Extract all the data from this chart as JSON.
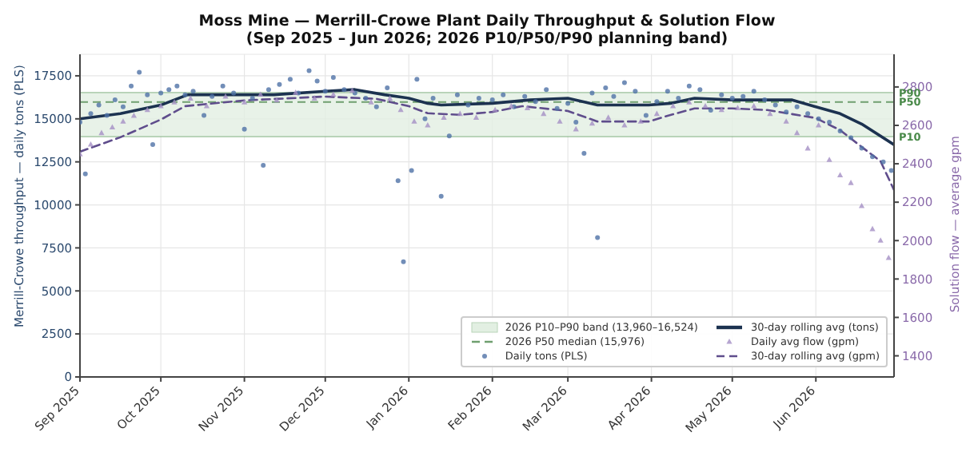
{
  "chart_data": {
    "type": "scatter",
    "title": "Moss Mine — Merrill-Crowe Plant Daily Throughput & Solution Flow",
    "subtitle": "(Sep 2025 – Jun 2026; 2026 P10/P50/P90 planning band)",
    "ylabel": "Merrill-Crowe throughput — daily tons (PLS)",
    "y2label": "Solution flow — average gpm",
    "xlim": [
      "2025-09-01",
      "2026-06-30"
    ],
    "xticks": [
      {
        "value": "2025-09-01",
        "label": "Sep 2025"
      },
      {
        "value": "2025-10-01",
        "label": "Oct 2025"
      },
      {
        "value": "2025-11-01",
        "label": "Nov 2025"
      },
      {
        "value": "2025-12-01",
        "label": "Dec 2025"
      },
      {
        "value": "2026-01-01",
        "label": "Jan 2026"
      },
      {
        "value": "2026-02-01",
        "label": "Feb 2026"
      },
      {
        "value": "2026-03-01",
        "label": "Mar 2026"
      },
      {
        "value": "2026-04-01",
        "label": "Apr 2026"
      },
      {
        "value": "2026-05-01",
        "label": "May 2026"
      },
      {
        "value": "2026-06-01",
        "label": "Jun 2026"
      }
    ],
    "ylim": [
      0,
      18750
    ],
    "yticks": [
      0,
      2500,
      5000,
      7500,
      10000,
      12500,
      15000,
      17500
    ],
    "y2lim": [
      1290,
      2970
    ],
    "y2ticks": [
      1400,
      1600,
      1800,
      2000,
      2200,
      2400,
      2600,
      2800
    ],
    "grid": true,
    "legend": "bottom right",
    "bands": [
      {
        "axis": "y",
        "from": 13960,
        "to": 16524,
        "label": "2026 P10–P90 band (13,960–16,524)",
        "color": "#e2efe2"
      }
    ],
    "ref_lines": [
      {
        "axis": "y",
        "value": 15976,
        "label": "2026 P50 median (15,976)",
        "color": "#6f9f6f",
        "line_style": "dashed"
      }
    ],
    "annotations": [
      {
        "text": "P90",
        "x": "2026-06-30",
        "y": 16524
      },
      {
        "text": "P50",
        "x": "2026-06-30",
        "y": 15976
      },
      {
        "text": "P10",
        "x": "2026-06-30",
        "y": 13960
      }
    ],
    "series": [
      {
        "name": "Daily tons (PLS)",
        "marker": "circle",
        "color": "#4f72a6",
        "x": [
          "2025-09-01",
          "2025-09-03",
          "2025-09-05",
          "2025-09-08",
          "2025-09-11",
          "2025-09-14",
          "2025-09-17",
          "2025-09-20",
          "2025-09-23",
          "2025-09-26",
          "2025-09-28",
          "2025-10-01",
          "2025-10-04",
          "2025-10-07",
          "2025-10-10",
          "2025-10-13",
          "2025-10-17",
          "2025-10-20",
          "2025-10-24",
          "2025-10-28",
          "2025-11-01",
          "2025-11-04",
          "2025-11-08",
          "2025-11-10",
          "2025-11-14",
          "2025-11-18",
          "2025-11-21",
          "2025-11-25",
          "2025-11-28",
          "2025-12-01",
          "2025-12-04",
          "2025-12-08",
          "2025-12-12",
          "2025-12-16",
          "2025-12-20",
          "2025-12-24",
          "2025-12-28",
          "2025-12-30",
          "2026-01-02",
          "2026-01-04",
          "2026-01-07",
          "2026-01-10",
          "2026-01-13",
          "2026-01-16",
          "2026-01-19",
          "2026-01-23",
          "2026-01-27",
          "2026-02-01",
          "2026-02-05",
          "2026-02-09",
          "2026-02-13",
          "2026-02-17",
          "2026-02-21",
          "2026-02-25",
          "2026-03-01",
          "2026-03-04",
          "2026-03-07",
          "2026-03-10",
          "2026-03-12",
          "2026-03-15",
          "2026-03-18",
          "2026-03-22",
          "2026-03-26",
          "2026-03-30",
          "2026-04-03",
          "2026-04-07",
          "2026-04-11",
          "2026-04-15",
          "2026-04-19",
          "2026-04-23",
          "2026-04-27",
          "2026-05-01",
          "2026-05-05",
          "2026-05-09",
          "2026-05-13",
          "2026-05-17",
          "2026-05-21",
          "2026-05-25",
          "2026-05-29",
          "2026-06-02",
          "2026-06-06",
          "2026-06-10",
          "2026-06-14",
          "2026-06-18",
          "2026-06-22",
          "2026-06-26",
          "2026-06-29"
        ],
        "values": [
          14800,
          11800,
          15300,
          15800,
          15200,
          16100,
          15700,
          16900,
          17700,
          16400,
          13500,
          16500,
          16700,
          16900,
          16400,
          16600,
          15200,
          16300,
          16900,
          16500,
          14400,
          16200,
          12300,
          16700,
          17000,
          17300,
          16500,
          17800,
          17200,
          16600,
          17400,
          16700,
          16500,
          16200,
          15700,
          16800,
          11400,
          6700,
          12000,
          17300,
          15000,
          16200,
          10500,
          14000,
          16400,
          15800,
          16200,
          16100,
          16400,
          15700,
          16300,
          16000,
          16700,
          15600,
          15900,
          14800,
          13000,
          16500,
          8100,
          16800,
          16300,
          17100,
          16600,
          15200,
          16000,
          16600,
          16200,
          16900,
          16700,
          15500,
          16400,
          16200,
          16300,
          16600,
          16100,
          15800,
          15400,
          15700,
          15300,
          15000,
          14800,
          14300,
          13900,
          13300,
          12800,
          12500,
          12000
        ]
      },
      {
        "name": "30-day rolling avg (tons)",
        "type": "line",
        "marker": "none",
        "line_style": "solid",
        "color": "#1c3250",
        "x": [
          "2025-09-01",
          "2025-09-16",
          "2025-10-01",
          "2025-10-11",
          "2025-11-01",
          "2025-11-12",
          "2025-12-01",
          "2025-12-12",
          "2025-12-23",
          "2026-01-01",
          "2026-01-08",
          "2026-01-13",
          "2026-02-01",
          "2026-02-15",
          "2026-03-01",
          "2026-03-12",
          "2026-03-31",
          "2026-04-08",
          "2026-04-17",
          "2026-05-01",
          "2026-05-23",
          "2026-06-01",
          "2026-06-10",
          "2026-06-18",
          "2026-06-30"
        ],
        "values": [
          15000,
          15300,
          15800,
          16400,
          16400,
          16400,
          16600,
          16700,
          16400,
          16200,
          15900,
          15800,
          15900,
          16100,
          16200,
          15800,
          15800,
          15900,
          16200,
          16100,
          16100,
          15700,
          15300,
          14700,
          13500
        ]
      },
      {
        "name": "Daily avg flow (gpm)",
        "type": "scatter",
        "marker": "triangle",
        "axis": "y2",
        "color": "#a48fc4",
        "x": [
          "2025-09-01",
          "2025-09-05",
          "2025-09-09",
          "2025-09-13",
          "2025-09-17",
          "2025-09-21",
          "2025-09-26",
          "2025-10-01",
          "2025-10-06",
          "2025-10-12",
          "2025-10-18",
          "2025-10-25",
          "2025-11-01",
          "2025-11-07",
          "2025-11-13",
          "2025-11-20",
          "2025-11-27",
          "2025-12-04",
          "2025-12-11",
          "2025-12-18",
          "2025-12-25",
          "2025-12-29",
          "2026-01-03",
          "2026-01-08",
          "2026-01-14",
          "2026-01-20",
          "2026-01-26",
          "2026-02-02",
          "2026-02-08",
          "2026-02-14",
          "2026-02-20",
          "2026-02-26",
          "2026-03-04",
          "2026-03-10",
          "2026-03-16",
          "2026-03-22",
          "2026-03-28",
          "2026-04-03",
          "2026-04-09",
          "2026-04-15",
          "2026-04-21",
          "2026-04-27",
          "2026-05-03",
          "2026-05-09",
          "2026-05-15",
          "2026-05-21",
          "2026-05-25",
          "2026-05-29",
          "2026-06-02",
          "2026-06-06",
          "2026-06-10",
          "2026-06-14",
          "2026-06-18",
          "2026-06-22",
          "2026-06-25",
          "2026-06-28"
        ],
        "values": [
          2450,
          2500,
          2560,
          2590,
          2620,
          2650,
          2680,
          2700,
          2720,
          2740,
          2700,
          2750,
          2720,
          2760,
          2730,
          2770,
          2740,
          2760,
          2780,
          2720,
          2740,
          2680,
          2620,
          2600,
          2640,
          2660,
          2640,
          2680,
          2700,
          2690,
          2660,
          2620,
          2580,
          2610,
          2640,
          2600,
          2620,
          2660,
          2700,
          2720,
          2700,
          2680,
          2690,
          2700,
          2660,
          2620,
          2560,
          2480,
          2600,
          2420,
          2340,
          2300,
          2180,
          2060,
          2000,
          1910
        ]
      },
      {
        "name": "30-day rolling avg (gpm)",
        "type": "line",
        "marker": "none",
        "line_style": "dashed",
        "axis": "y2",
        "color": "#5f4d8c",
        "x": [
          "2025-09-01",
          "2025-09-16",
          "2025-10-01",
          "2025-10-10",
          "2025-11-01",
          "2025-12-01",
          "2025-12-20",
          "2026-01-01",
          "2026-01-08",
          "2026-01-20",
          "2026-02-01",
          "2026-02-12",
          "2026-03-01",
          "2026-03-12",
          "2026-03-31",
          "2026-04-07",
          "2026-04-17",
          "2026-05-01",
          "2026-05-14",
          "2026-06-01",
          "2026-06-10",
          "2026-06-18",
          "2026-06-25",
          "2026-06-30"
        ],
        "values": [
          2463,
          2538,
          2630,
          2700,
          2730,
          2750,
          2738,
          2700,
          2663,
          2655,
          2670,
          2700,
          2675,
          2620,
          2620,
          2650,
          2688,
          2688,
          2680,
          2638,
          2575,
          2488,
          2413,
          2263
        ]
      }
    ]
  }
}
